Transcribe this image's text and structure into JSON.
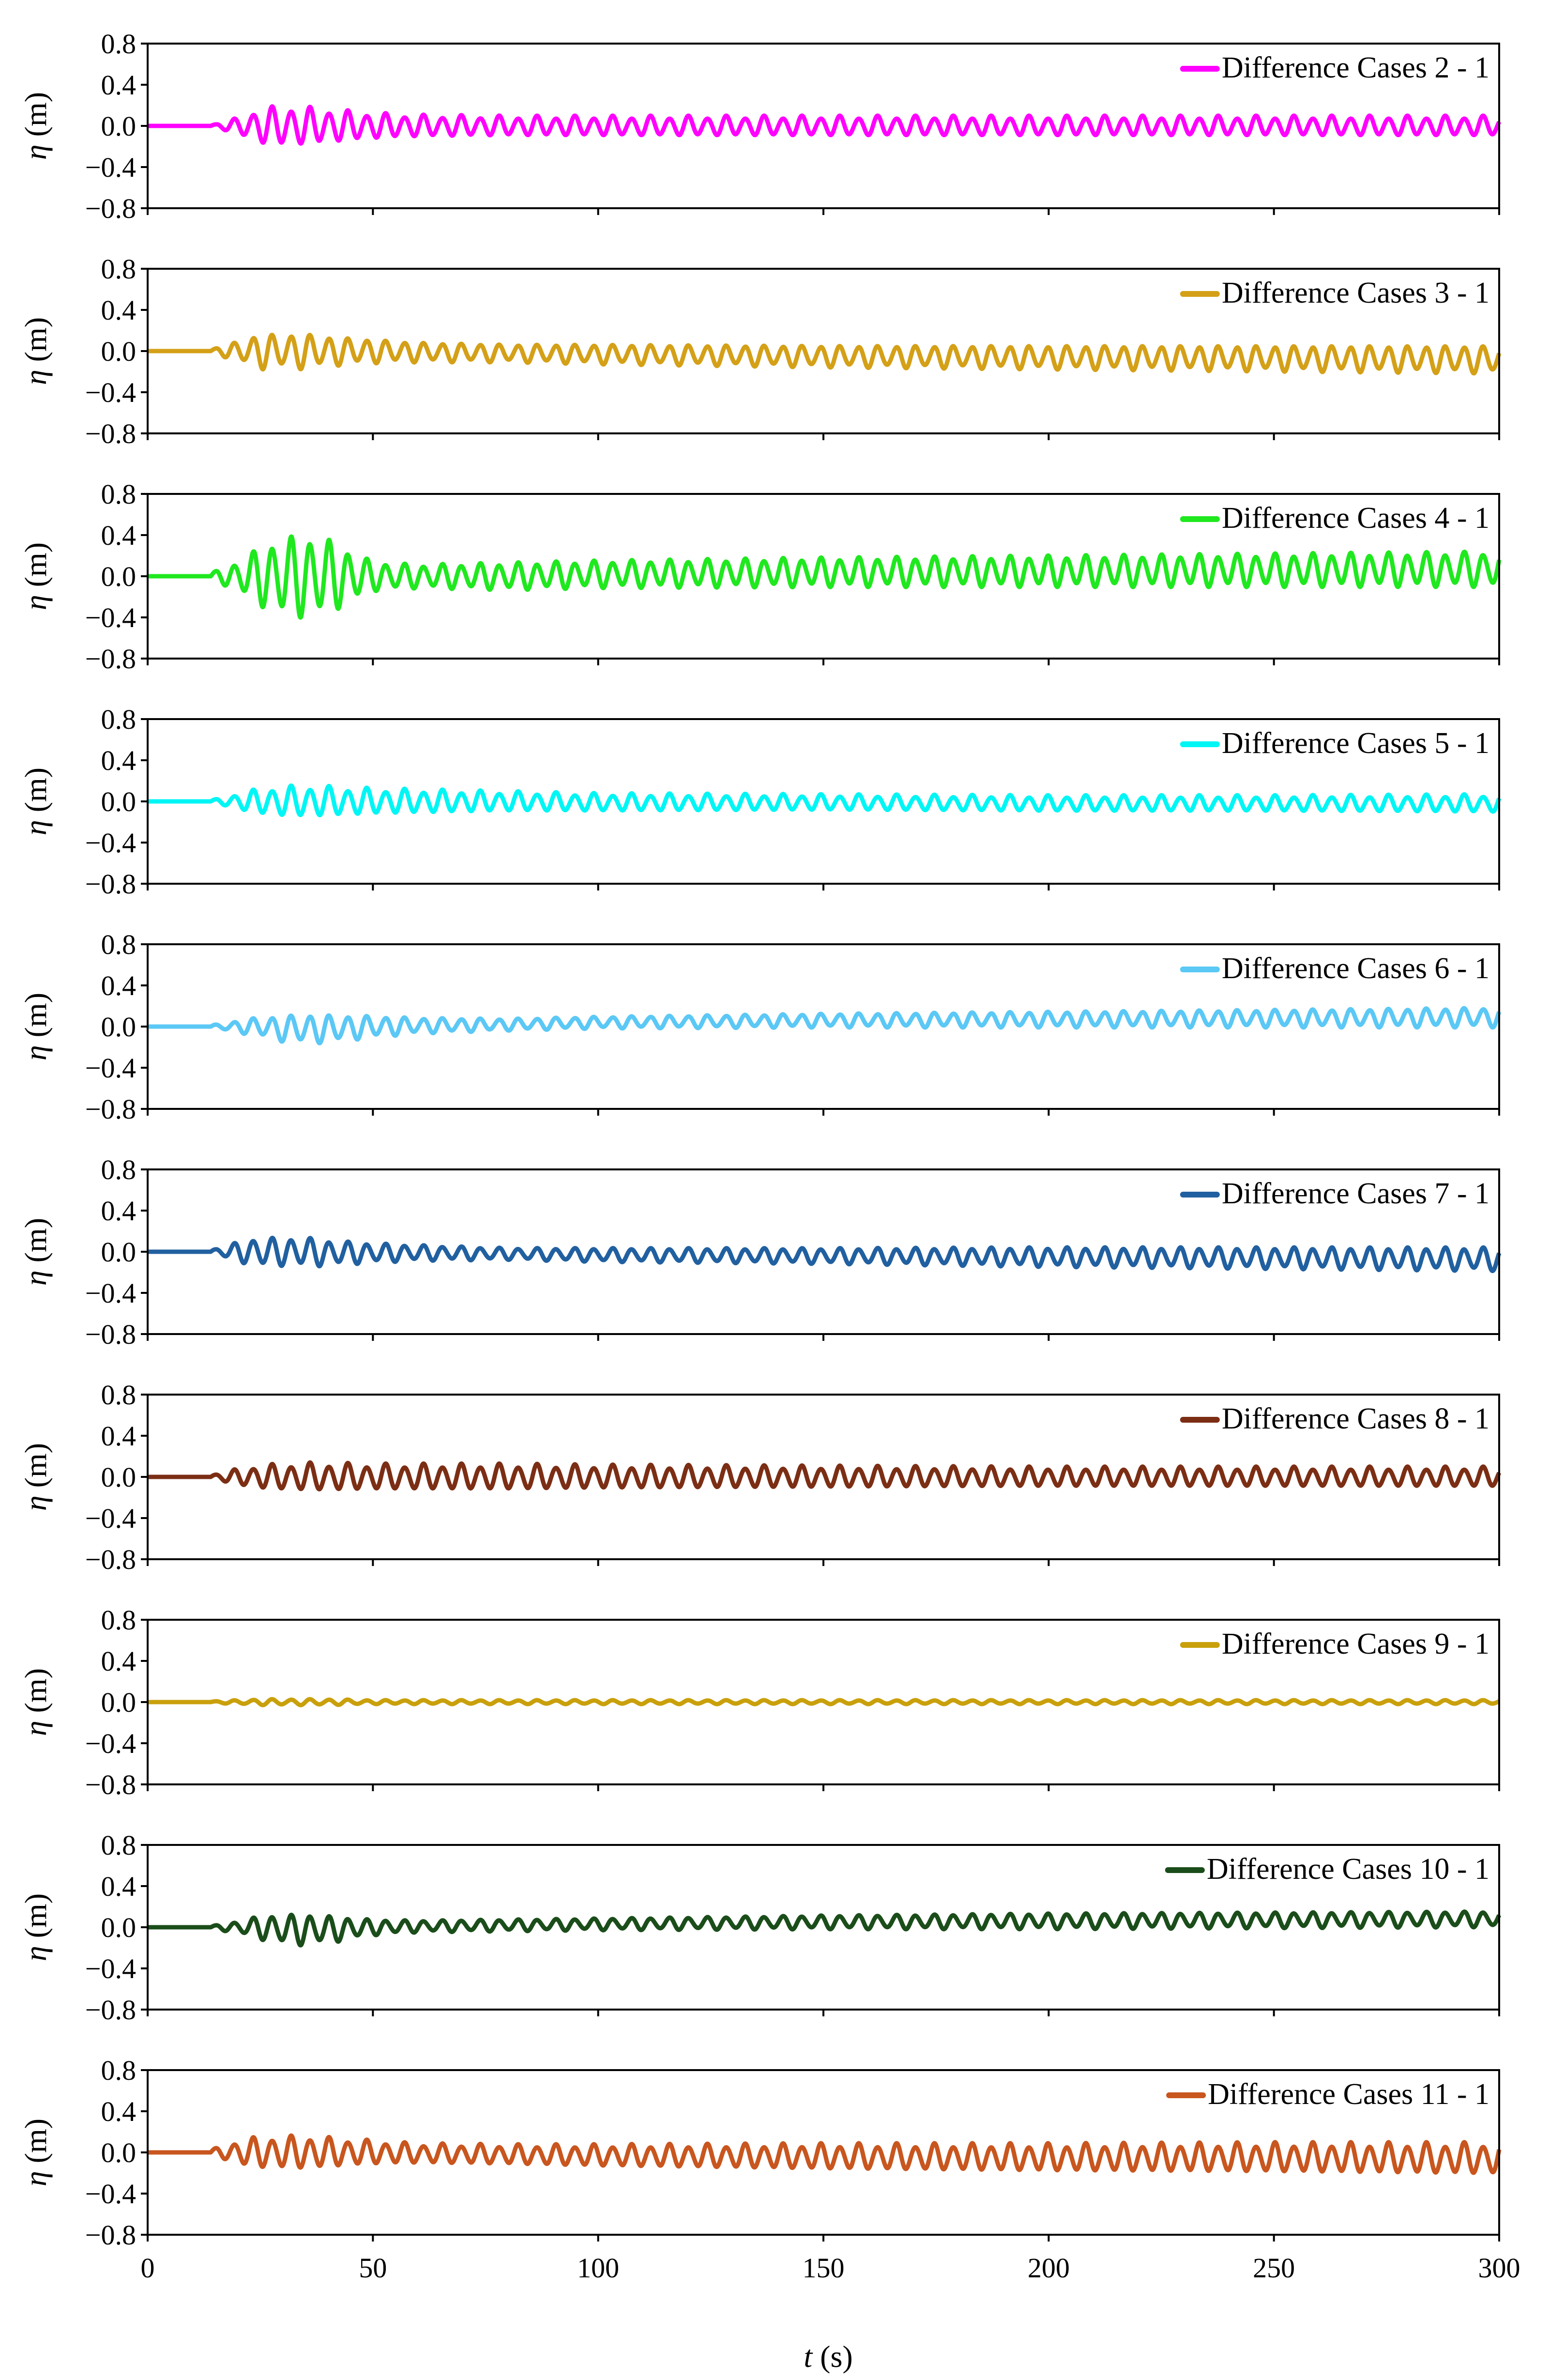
{
  "chart_data": [
    {
      "type": "line",
      "name": "Difference Cases 2 - 1",
      "legend": "Difference Cases 2 - 1",
      "color": "#FF00FF",
      "ylabel": "η (m)",
      "ylim": [
        -0.8,
        0.8
      ],
      "yticks": [
        "0.8",
        "0.4",
        "0.0",
        "-0.4",
        "-0.8"
      ],
      "grid": false,
      "legend_position": "top-right",
      "x": [
        0,
        10,
        15,
        20,
        25,
        30,
        35,
        40,
        50,
        60,
        80,
        100,
        150,
        200,
        250,
        300
      ],
      "envelope_amplitude": [
        0,
        0,
        0.02,
        0.08,
        0.18,
        0.2,
        0.19,
        0.17,
        0.13,
        0.11,
        0.1,
        0.1,
        0.1,
        0.1,
        0.1,
        0.1
      ],
      "offset": [
        0,
        0,
        0,
        0,
        0,
        0,
        0,
        0,
        0,
        0,
        0,
        0,
        0,
        0,
        0,
        0
      ]
    },
    {
      "type": "line",
      "name": "Difference Cases 3 - 1",
      "legend": "Difference Cases 3 - 1",
      "color": "#D4A017",
      "ylabel": "η (m)",
      "ylim": [
        -0.8,
        0.8
      ],
      "yticks": [
        "0.8",
        "0.4",
        "0.0",
        "-0.4",
        "-0.8"
      ],
      "grid": false,
      "legend_position": "top-right",
      "x": [
        0,
        10,
        15,
        20,
        25,
        30,
        35,
        40,
        50,
        60,
        80,
        100,
        150,
        200,
        250,
        300
      ],
      "envelope_amplitude": [
        0,
        0,
        0.03,
        0.1,
        0.18,
        0.17,
        0.18,
        0.15,
        0.12,
        0.1,
        0.09,
        0.1,
        0.11,
        0.12,
        0.13,
        0.14
      ],
      "offset": [
        0,
        0,
        0,
        0,
        0,
        0,
        0,
        0,
        0,
        -0.01,
        -0.02,
        -0.03,
        -0.05,
        -0.06,
        -0.07,
        -0.08
      ]
    },
    {
      "type": "line",
      "name": "Difference Cases 4 - 1",
      "legend": "Difference Cases 4 - 1",
      "color": "#1FE81F",
      "ylabel": "η (m)",
      "ylim": [
        -0.8,
        0.8
      ],
      "yticks": [
        "0.8",
        "0.4",
        "0.0",
        "-0.4",
        "-0.8"
      ],
      "grid": false,
      "legend_position": "top-right",
      "x": [
        0,
        10,
        15,
        20,
        25,
        30,
        35,
        40,
        50,
        60,
        80,
        100,
        150,
        200,
        250,
        300
      ],
      "envelope_amplitude": [
        0,
        0,
        0.05,
        0.15,
        0.3,
        0.4,
        0.42,
        0.38,
        0.15,
        0.12,
        0.14,
        0.14,
        0.15,
        0.16,
        0.17,
        0.18
      ],
      "offset": [
        0,
        0,
        0,
        0,
        0,
        0,
        0,
        0,
        0,
        0,
        0,
        0.02,
        0.04,
        0.05,
        0.06,
        0.07
      ]
    },
    {
      "type": "line",
      "name": "Difference Cases 5 - 1",
      "legend": "Difference Cases 5 - 1",
      "color": "#00F5F5",
      "ylabel": "η (m)",
      "ylim": [
        -0.8,
        0.8
      ],
      "yticks": [
        "0.8",
        "0.4",
        "0.0",
        "-0.4",
        "-0.8"
      ],
      "grid": false,
      "legend_position": "top-right",
      "x": [
        0,
        10,
        15,
        20,
        25,
        30,
        35,
        40,
        50,
        60,
        80,
        100,
        150,
        200,
        250,
        300
      ],
      "envelope_amplitude": [
        0,
        0,
        0.02,
        0.08,
        0.13,
        0.15,
        0.16,
        0.15,
        0.13,
        0.12,
        0.1,
        0.09,
        0.08,
        0.08,
        0.08,
        0.09
      ],
      "offset": [
        0,
        0,
        0,
        0,
        0,
        0,
        0,
        0,
        0,
        0,
        0,
        -0.01,
        -0.01,
        -0.02,
        -0.02,
        -0.02
      ]
    },
    {
      "type": "line",
      "name": "Difference Cases 6 - 1",
      "legend": "Difference Cases 6 - 1",
      "color": "#5BC8F5",
      "ylabel": "η (m)",
      "ylim": [
        -0.8,
        0.8
      ],
      "yticks": [
        "0.8",
        "0.4",
        "0.0",
        "-0.4",
        "-0.8"
      ],
      "grid": false,
      "legend_position": "top-right",
      "x": [
        0,
        10,
        15,
        20,
        25,
        30,
        35,
        40,
        50,
        60,
        80,
        100,
        150,
        200,
        250,
        300
      ],
      "envelope_amplitude": [
        0,
        0,
        0.02,
        0.06,
        0.1,
        0.13,
        0.15,
        0.14,
        0.11,
        0.08,
        0.06,
        0.06,
        0.07,
        0.08,
        0.09,
        0.1
      ],
      "offset": [
        0,
        0,
        0,
        0,
        0,
        -0.02,
        -0.02,
        -0.02,
        0,
        0.01,
        0.02,
        0.04,
        0.06,
        0.07,
        0.08,
        0.09
      ]
    },
    {
      "type": "line",
      "name": "Difference Cases 7 - 1",
      "legend": "Difference Cases 7 - 1",
      "color": "#2160A0",
      "ylabel": "η (m)",
      "ylim": [
        -0.8,
        0.8
      ],
      "yticks": [
        "0.8",
        "0.4",
        "0.0",
        "-0.4",
        "-0.8"
      ],
      "grid": false,
      "legend_position": "top-right",
      "x": [
        0,
        10,
        15,
        20,
        25,
        30,
        35,
        40,
        50,
        60,
        80,
        100,
        150,
        200,
        250,
        300
      ],
      "envelope_amplitude": [
        0,
        0,
        0.03,
        0.1,
        0.15,
        0.14,
        0.15,
        0.13,
        0.1,
        0.08,
        0.06,
        0.07,
        0.08,
        0.1,
        0.11,
        0.12
      ],
      "offset": [
        0,
        0,
        0,
        0,
        0,
        0,
        0,
        -0.01,
        -0.01,
        -0.01,
        -0.02,
        -0.03,
        -0.04,
        -0.05,
        -0.06,
        -0.07
      ]
    },
    {
      "type": "line",
      "name": "Difference Cases 8 - 1",
      "legend": "Difference Cases 8 - 1",
      "color": "#7B2E14",
      "ylabel": "η (m)",
      "ylim": [
        -0.8,
        0.8
      ],
      "yticks": [
        "0.8",
        "0.4",
        "0.0",
        "-0.4",
        "-0.8"
      ],
      "grid": false,
      "legend_position": "top-right",
      "x": [
        0,
        10,
        15,
        20,
        25,
        30,
        35,
        40,
        50,
        60,
        80,
        100,
        150,
        200,
        250,
        300
      ],
      "envelope_amplitude": [
        0,
        0,
        0.03,
        0.08,
        0.12,
        0.13,
        0.14,
        0.14,
        0.13,
        0.13,
        0.13,
        0.12,
        0.11,
        0.1,
        0.1,
        0.1
      ],
      "offset": [
        0,
        0,
        0,
        0,
        0,
        0,
        0,
        0,
        0,
        0,
        0,
        0,
        0,
        0,
        0,
        0
      ]
    },
    {
      "type": "line",
      "name": "Difference Cases 9 - 1",
      "legend": "Difference Cases 9 - 1",
      "color": "#C9A00C",
      "ylabel": "η (m)",
      "ylim": [
        -0.8,
        0.8
      ],
      "yticks": [
        "0.8",
        "0.4",
        "0.0",
        "-0.4",
        "-0.8"
      ],
      "grid": false,
      "legend_position": "top-right",
      "x": [
        0,
        10,
        15,
        20,
        25,
        30,
        35,
        40,
        50,
        60,
        80,
        100,
        150,
        200,
        250,
        300
      ],
      "envelope_amplitude": [
        0,
        0,
        0.01,
        0.02,
        0.03,
        0.03,
        0.03,
        0.03,
        0.02,
        0.02,
        0.02,
        0.02,
        0.02,
        0.02,
        0.02,
        0.02
      ],
      "offset": [
        0,
        0,
        0,
        0,
        0,
        0,
        0,
        0,
        0,
        0,
        0,
        0,
        0,
        0,
        0,
        0
      ]
    },
    {
      "type": "line",
      "name": "Difference Cases 10 - 1",
      "legend": "Difference Cases 10 - 1",
      "color": "#1A4D1A",
      "ylabel": "η (m)",
      "ylim": [
        -0.8,
        0.8
      ],
      "yticks": [
        "0.8",
        "0.4",
        "0.0",
        "-0.4",
        "-0.8"
      ],
      "grid": false,
      "legend_position": "top-right",
      "x": [
        0,
        10,
        15,
        20,
        25,
        30,
        35,
        40,
        50,
        60,
        80,
        100,
        150,
        200,
        250,
        300
      ],
      "envelope_amplitude": [
        0,
        0,
        0.02,
        0.06,
        0.12,
        0.15,
        0.16,
        0.14,
        0.08,
        0.06,
        0.06,
        0.06,
        0.07,
        0.08,
        0.08,
        0.08
      ],
      "offset": [
        0,
        0,
        0,
        0,
        0,
        -0.02,
        -0.02,
        -0.02,
        0,
        0.01,
        0.02,
        0.03,
        0.05,
        0.06,
        0.07,
        0.08
      ]
    },
    {
      "type": "line",
      "name": "Difference Cases 11 - 1",
      "legend": "Difference Cases 11 - 1",
      "color": "#C8561E",
      "ylabel": "η (m)",
      "ylim": [
        -0.8,
        0.8
      ],
      "yticks": [
        "0.8",
        "0.4",
        "0.0",
        "-0.4",
        "-0.8"
      ],
      "grid": false,
      "legend_position": "top-right",
      "x": [
        0,
        10,
        15,
        20,
        25,
        30,
        35,
        40,
        50,
        60,
        80,
        100,
        150,
        200,
        250,
        300
      ],
      "envelope_amplitude": [
        0,
        0,
        0.04,
        0.12,
        0.16,
        0.16,
        0.17,
        0.15,
        0.12,
        0.1,
        0.1,
        0.11,
        0.13,
        0.14,
        0.15,
        0.16
      ],
      "offset": [
        0,
        0,
        0,
        0,
        0,
        0,
        0,
        0,
        0,
        -0.01,
        -0.02,
        -0.03,
        -0.04,
        -0.05,
        -0.05,
        -0.06
      ]
    }
  ],
  "shared_x_axis": {
    "label_var": "t",
    "label_unit": " (s)",
    "xlim": [
      0,
      300
    ],
    "ticks": [
      0,
      50,
      100,
      150,
      200,
      250,
      300
    ],
    "tick_labels": [
      "0",
      "50",
      "100",
      "150",
      "200",
      "250",
      "300"
    ]
  },
  "signal": {
    "period_s": 4.2,
    "start_s": 14
  }
}
